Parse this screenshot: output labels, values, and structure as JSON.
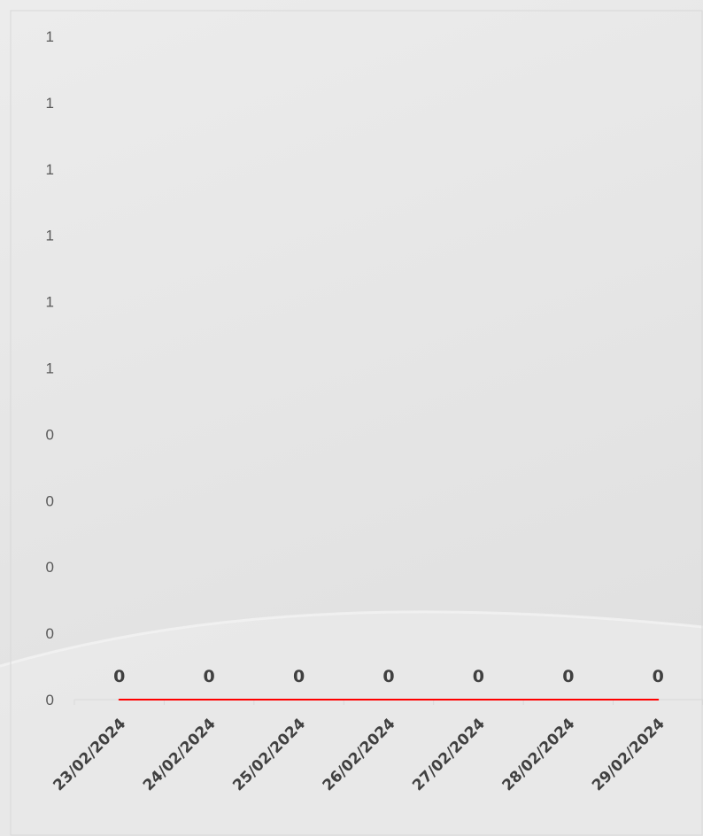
{
  "chart_data": {
    "type": "line",
    "title": "",
    "xlabel": "",
    "ylabel": "",
    "categories": [
      "23/02/2024",
      "24/02/2024",
      "25/02/2024",
      "26/02/2024",
      "27/02/2024",
      "28/02/2024",
      "29/02/2024"
    ],
    "series": [
      {
        "values": [
          0,
          0,
          0,
          0,
          0,
          0,
          0
        ],
        "color": "#ff0000"
      }
    ],
    "y_tick_labels": [
      "0",
      "0",
      "0",
      "0",
      "0",
      "1",
      "1",
      "1",
      "1",
      "1",
      "1"
    ],
    "ylim": [
      0,
      1
    ],
    "grid": false,
    "legend": "none",
    "data_labels": true,
    "colors": {
      "background": "#e6e6e6",
      "line": "#ff0000",
      "axis": "#d9d9d9",
      "text": "#404040"
    }
  }
}
